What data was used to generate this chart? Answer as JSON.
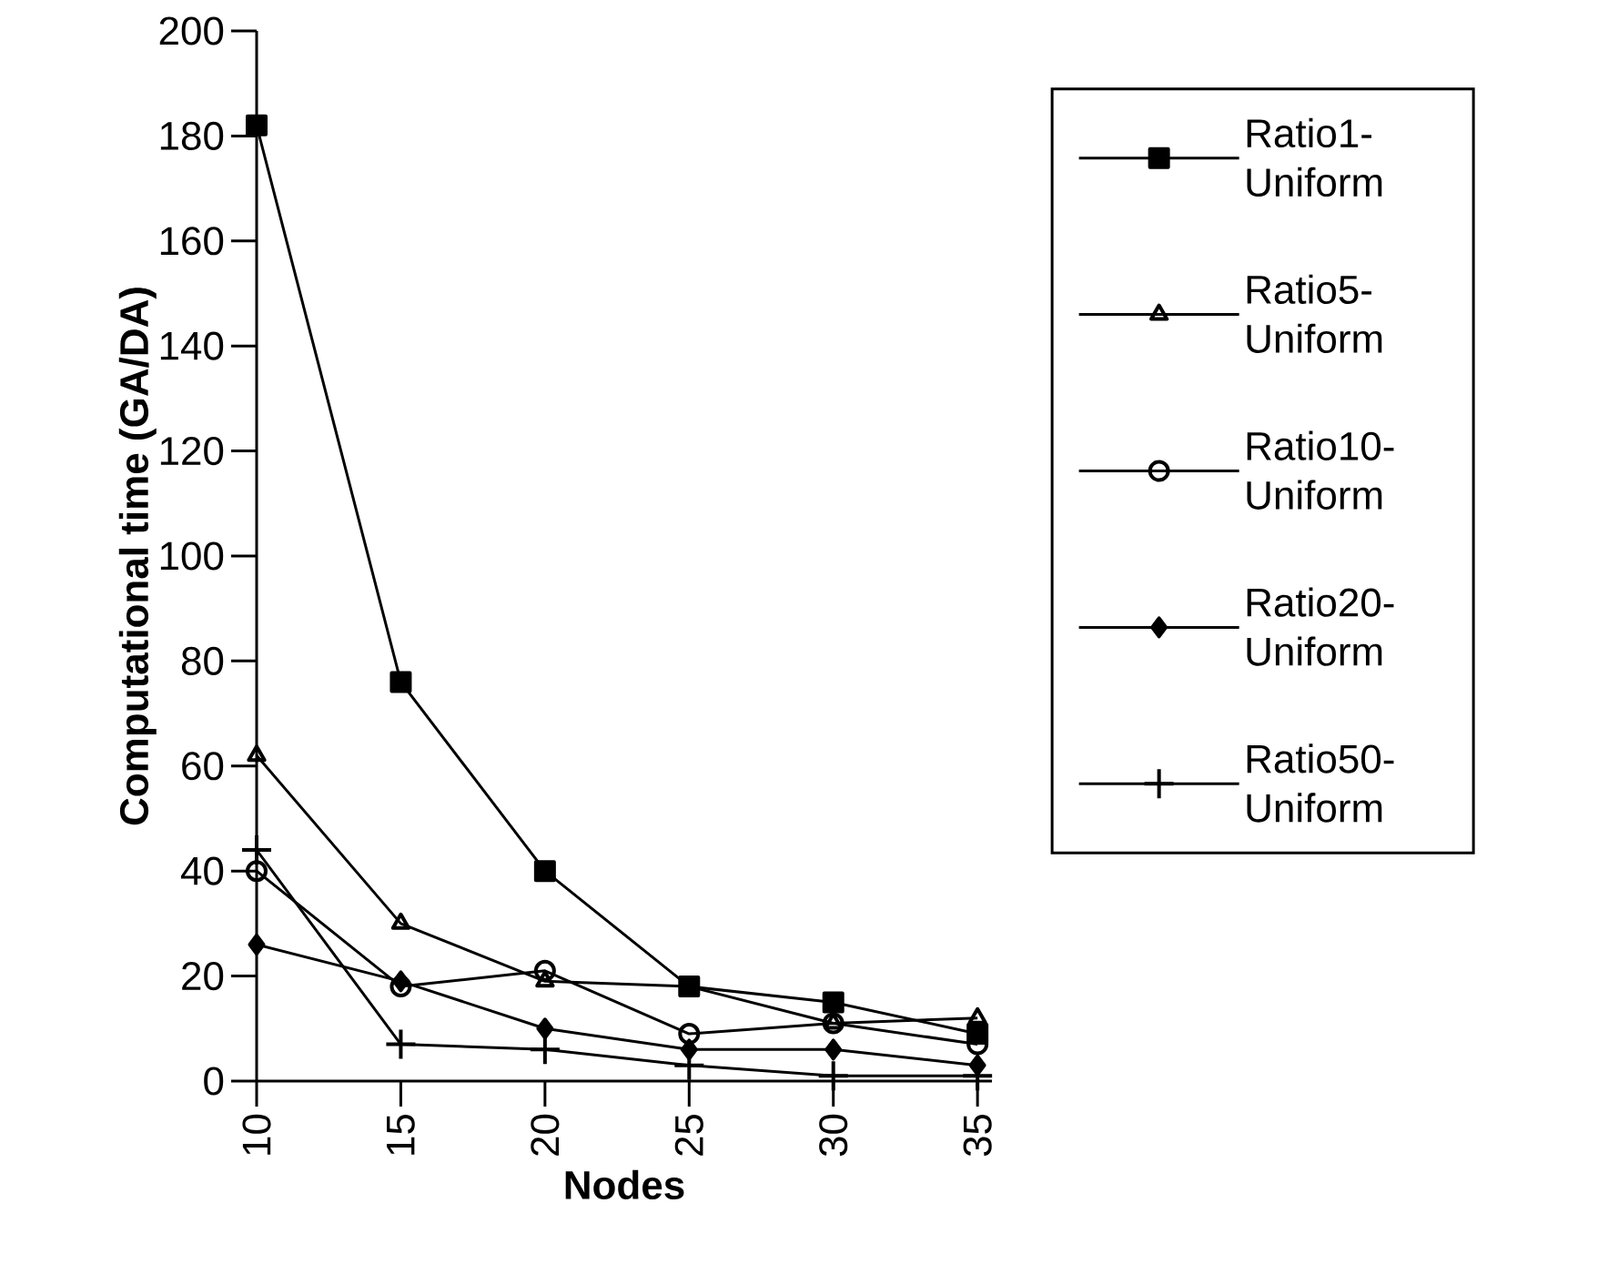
{
  "chart_data": {
    "type": "line",
    "xlabel": "Nodes",
    "ylabel": "Computational time (GA/DA)",
    "x": [
      10,
      15,
      20,
      25,
      30,
      35
    ],
    "xlim": [
      10,
      35.5
    ],
    "xticks": [
      10,
      15,
      20,
      25,
      30,
      35
    ],
    "ylim": [
      0,
      200
    ],
    "yticks": [
      0,
      20,
      40,
      60,
      80,
      100,
      120,
      140,
      160,
      180,
      200
    ],
    "legend": "right",
    "line_style": "solid",
    "series": [
      {
        "name": "Ratio1-Uniform",
        "color": "#000000",
        "marker": "square",
        "values": [
          182,
          76,
          40,
          18,
          15,
          9
        ]
      },
      {
        "name": "Ratio5-Uniform",
        "color": "#000000",
        "marker": "triangle",
        "values": [
          62,
          30,
          19,
          18,
          11,
          12
        ]
      },
      {
        "name": "Ratio10-Uniform",
        "color": "#000000",
        "marker": "circle",
        "values": [
          40,
          18,
          21,
          9,
          11,
          7
        ]
      },
      {
        "name": "Ratio20-Uniform",
        "color": "#000000",
        "marker": "diamond",
        "values": [
          26,
          19,
          10,
          6,
          6,
          3
        ]
      },
      {
        "name": "Ratio50-Uniform",
        "color": "#000000",
        "marker": "cross",
        "values": [
          44,
          7,
          6,
          3,
          1,
          1
        ]
      }
    ]
  }
}
